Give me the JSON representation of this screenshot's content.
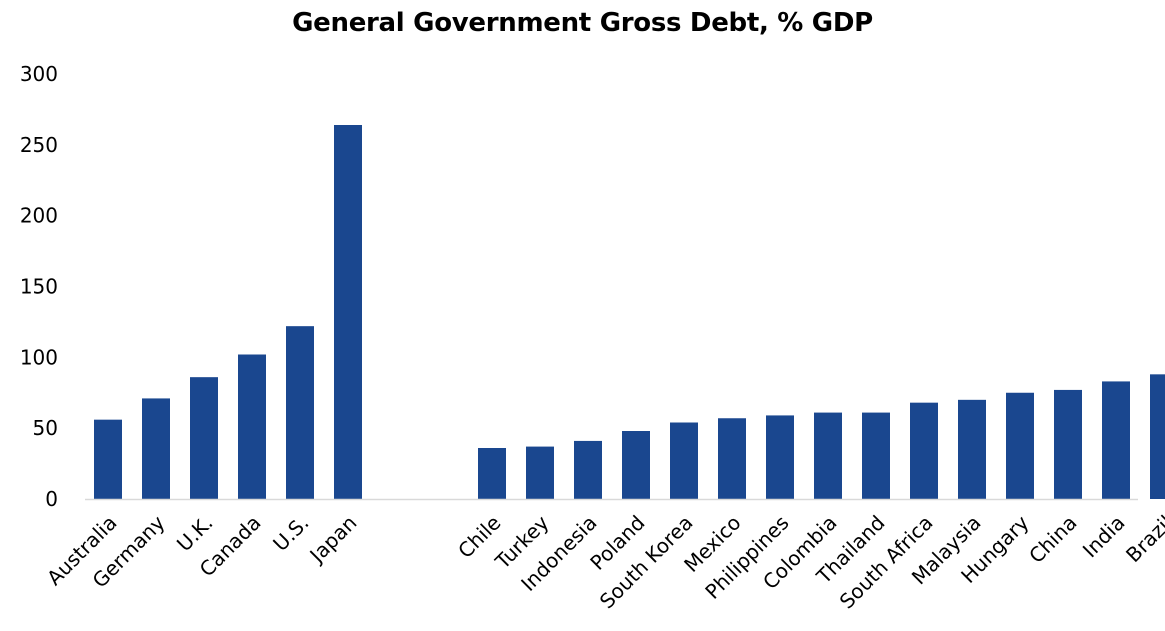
{
  "chart_data": {
    "type": "bar",
    "title": "General Government Gross Debt, % GDP",
    "xlabel": "",
    "ylabel": "",
    "ylim": [
      0,
      300
    ],
    "yticks": [
      0,
      50,
      100,
      150,
      200,
      250,
      300
    ],
    "grid": false,
    "bar_color": "#1a478f",
    "axis_color": "#d9d9d9",
    "groups": [
      {
        "categories": [
          "Australia",
          "Germany",
          "U.K.",
          "Canada",
          "U.S.",
          "Japan"
        ],
        "values": [
          56,
          71,
          86,
          102,
          122,
          264
        ]
      },
      {
        "categories": [
          "Chile",
          "Turkey",
          "Indonesia",
          "Poland",
          "South Korea",
          "Mexico",
          "Philippines",
          "Colombia",
          "Thailand",
          "South Africa",
          "Malaysia",
          "Hungary",
          "China",
          "India",
          "Brazil"
        ],
        "values": [
          36,
          37,
          41,
          48,
          54,
          57,
          59,
          61,
          61,
          68,
          70,
          75,
          77,
          83,
          88
        ]
      }
    ]
  }
}
